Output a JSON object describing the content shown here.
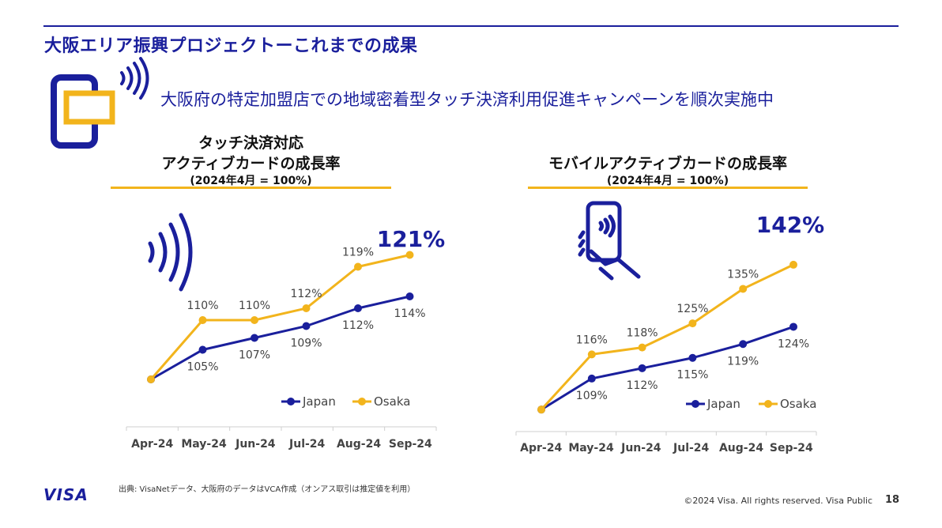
{
  "header": {
    "title": "大阪エリア振興プロジェクトーこれまでの成果",
    "subtitle": "大阪府の特定加盟店での地域密着型タッチ決済利用促進キャンペーンを順次実施中"
  },
  "colors": {
    "primary": "#1a1f9c",
    "gold": "#f2b41c"
  },
  "charts": [
    {
      "title_line1": "タッチ決済対応",
      "title_line2": "アクティブカードの成長率",
      "subtitle": "(2024年4月 = 100%)",
      "highlight": "121%",
      "icon": "contactless-waves-icon"
    },
    {
      "title_line1": "",
      "title_line2": "モバイルアクティブカードの成長率",
      "subtitle": "(2024年4月 = 100%)",
      "highlight": "142%",
      "icon": "mobile-tap-icon"
    }
  ],
  "chart_data": [
    {
      "type": "line",
      "categories": [
        "Apr-24",
        "May-24",
        "Jun-24",
        "Jul-24",
        "Aug-24",
        "Sep-24"
      ],
      "series": [
        {
          "name": "Japan",
          "color": "#1a1f9c",
          "values": [
            100,
            105,
            107,
            109,
            112,
            114
          ],
          "labels": [
            "",
            "105%",
            "107%",
            "109%",
            "112%",
            "114%"
          ]
        },
        {
          "name": "Osaka",
          "color": "#f2b41c",
          "values": [
            100,
            110,
            110,
            112,
            119,
            121
          ],
          "labels": [
            "",
            "110%",
            "110%",
            "112%",
            "119%",
            ""
          ]
        }
      ],
      "ylim": [
        96,
        124
      ]
    },
    {
      "type": "line",
      "categories": [
        "Apr-24",
        "May-24",
        "Jun-24",
        "Jul-24",
        "Aug-24",
        "Sep-24"
      ],
      "series": [
        {
          "name": "Japan",
          "color": "#1a1f9c",
          "values": [
            100,
            109,
            112,
            115,
            119,
            124
          ],
          "labels": [
            "",
            "109%",
            "112%",
            "115%",
            "119%",
            "124%"
          ]
        },
        {
          "name": "Osaka",
          "color": "#f2b41c",
          "values": [
            100,
            116,
            118,
            125,
            135,
            142
          ],
          "labels": [
            "",
            "116%",
            "118%",
            "125%",
            "135%",
            ""
          ]
        }
      ],
      "ylim": [
        95,
        150
      ]
    }
  ],
  "footer": {
    "brand": "VISA",
    "source": "出典: VisaNetデータ、大阪府のデータはVCA作成（オンアス取引は推定値を利用）",
    "copyright": "©2024 Visa. All rights reserved. Visa Public",
    "page": "18"
  }
}
